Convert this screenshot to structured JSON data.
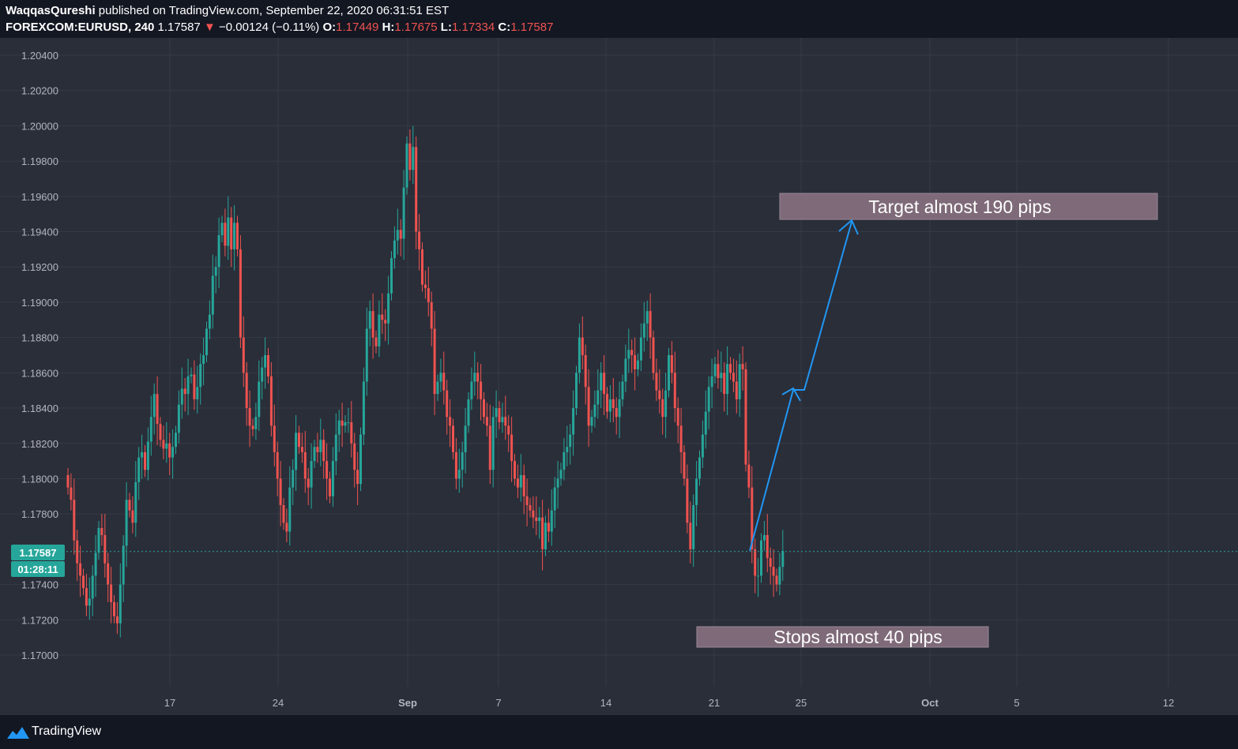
{
  "header": {
    "author": "WaqqasQureshi",
    "published_text": " published on TradingView.com, September 22, 2020 06:31:51 EST",
    "symbol": "FOREXCOM:EURUSD, 240",
    "last_price": "1.17587",
    "down_arrow": "▼",
    "change": "−0.00124 (−0.11%)",
    "open_label": "O:",
    "open": "1.17449",
    "high_label": "H:",
    "high": "1.17675",
    "low_label": "L:",
    "low": "1.17334",
    "close_label": "C:",
    "close": "1.17587"
  },
  "footer": {
    "brand": "TradingView"
  },
  "colors": {
    "background": "#131722",
    "pane": "#2a2e39",
    "grid": "#363a45",
    "up": "#26a69a",
    "down": "#ef5350",
    "price_line": "#26a69a",
    "arrow": "#2196f3",
    "annotation_box": "#7e6a78"
  },
  "chart_data": {
    "type": "candlestick",
    "symbol": "FOREXCOM:EURUSD",
    "timeframe": "240",
    "ylim": [
      1.169,
      1.2065
    ],
    "y_ticks": [
      "1.20400",
      "1.20200",
      "1.20000",
      "1.19800",
      "1.19600",
      "1.19400",
      "1.19200",
      "1.19000",
      "1.18800",
      "1.18600",
      "1.18400",
      "1.18200",
      "1.18000",
      "1.17800",
      "1.17400",
      "1.17200",
      "1.17000"
    ],
    "x_ticks": [
      "17",
      "24",
      "Sep",
      "7",
      "14",
      "21",
      "25",
      "Oct",
      "5",
      "12"
    ],
    "current_price": "1.17587",
    "countdown": "01:28:11",
    "grid": true,
    "closes": [
      1.1795,
      1.1788,
      1.1765,
      1.1752,
      1.1745,
      1.1738,
      1.1728,
      1.1732,
      1.1745,
      1.1758,
      1.1772,
      1.1768,
      1.1752,
      1.174,
      1.173,
      1.1722,
      1.1718,
      1.174,
      1.1762,
      1.1788,
      1.1782,
      1.1775,
      1.1798,
      1.1812,
      1.1815,
      1.1805,
      1.1821,
      1.1835,
      1.1848,
      1.1831,
      1.1822,
      1.1817,
      1.182,
      1.1812,
      1.1818,
      1.1826,
      1.1842,
      1.1851,
      1.1848,
      1.1858,
      1.1859,
      1.1845,
      1.1852,
      1.1865,
      1.187,
      1.1885,
      1.1893,
      1.1915,
      1.192,
      1.1938,
      1.1945,
      1.1932,
      1.1948,
      1.193,
      1.1945,
      1.193,
      1.188,
      1.186,
      1.184,
      1.183,
      1.1828,
      1.1835,
      1.1855,
      1.1863,
      1.187,
      1.1858,
      1.183,
      1.1815,
      1.18,
      1.1785,
      1.1775,
      1.177,
      1.1795,
      1.1805,
      1.1826,
      1.1818,
      1.1815,
      1.18,
      1.1795,
      1.181,
      1.1818,
      1.1815,
      1.1822,
      1.181,
      1.18,
      1.179,
      1.181,
      1.1825,
      1.1833,
      1.183,
      1.1832,
      1.1832,
      1.182,
      1.1805,
      1.1797,
      1.1825,
      1.1855,
      1.1885,
      1.1895,
      1.188,
      1.1875,
      1.1893,
      1.189,
      1.1888,
      1.1905,
      1.1925,
      1.1935,
      1.1941,
      1.1936,
      1.1965,
      1.199,
      1.1975,
      1.1988,
      1.194,
      1.193,
      1.191,
      1.1908,
      1.19,
      1.1885,
      1.1848,
      1.1855,
      1.186,
      1.185,
      1.1835,
      1.183,
      1.1815,
      1.18,
      1.1805,
      1.1815,
      1.183,
      1.1845,
      1.1855,
      1.186,
      1.1855,
      1.1845,
      1.1835,
      1.183,
      1.1805,
      1.1835,
      1.184,
      1.1832,
      1.1835,
      1.183,
      1.1825,
      1.181,
      1.18,
      1.1795,
      1.1802,
      1.179,
      1.1785,
      1.1782,
      1.1778,
      1.1776,
      1.1778,
      1.176,
      1.1775,
      1.177,
      1.1782,
      1.1795,
      1.18,
      1.1805,
      1.1815,
      1.1818,
      1.1825,
      1.184,
      1.186,
      1.188,
      1.187,
      1.1852,
      1.183,
      1.1835,
      1.1842,
      1.185,
      1.186,
      1.1848,
      1.1838,
      1.1845,
      1.184,
      1.1835,
      1.1845,
      1.1855,
      1.1868,
      1.1873,
      1.187,
      1.1862,
      1.1867,
      1.188,
      1.1888,
      1.1895,
      1.188,
      1.186,
      1.185,
      1.1845,
      1.1835,
      1.185,
      1.187,
      1.186,
      1.184,
      1.183,
      1.1815,
      1.18,
      1.1775,
      1.176,
      1.1785,
      1.18,
      1.1812,
      1.1825,
      1.1838,
      1.1852,
      1.1858,
      1.1865,
      1.1857,
      1.186,
      1.1848,
      1.1865,
      1.186,
      1.1855,
      1.1845,
      1.1865,
      1.1862,
      1.1808,
      1.1795,
      1.176,
      1.1745,
      1.1745,
      1.1765,
      1.1768,
      1.1755,
      1.175,
      1.1745,
      1.174,
      1.175,
      1.1759
    ],
    "annotations": [
      {
        "type": "label",
        "text": "Target almost 190 pips"
      },
      {
        "type": "label",
        "text": "Stops almost 40 pips"
      },
      {
        "type": "arrow",
        "points": [
          [
            1.1759,
            "last"
          ],
          [
            1.185,
            "25"
          ],
          [
            1.1947,
            "after 25"
          ]
        ]
      }
    ]
  }
}
